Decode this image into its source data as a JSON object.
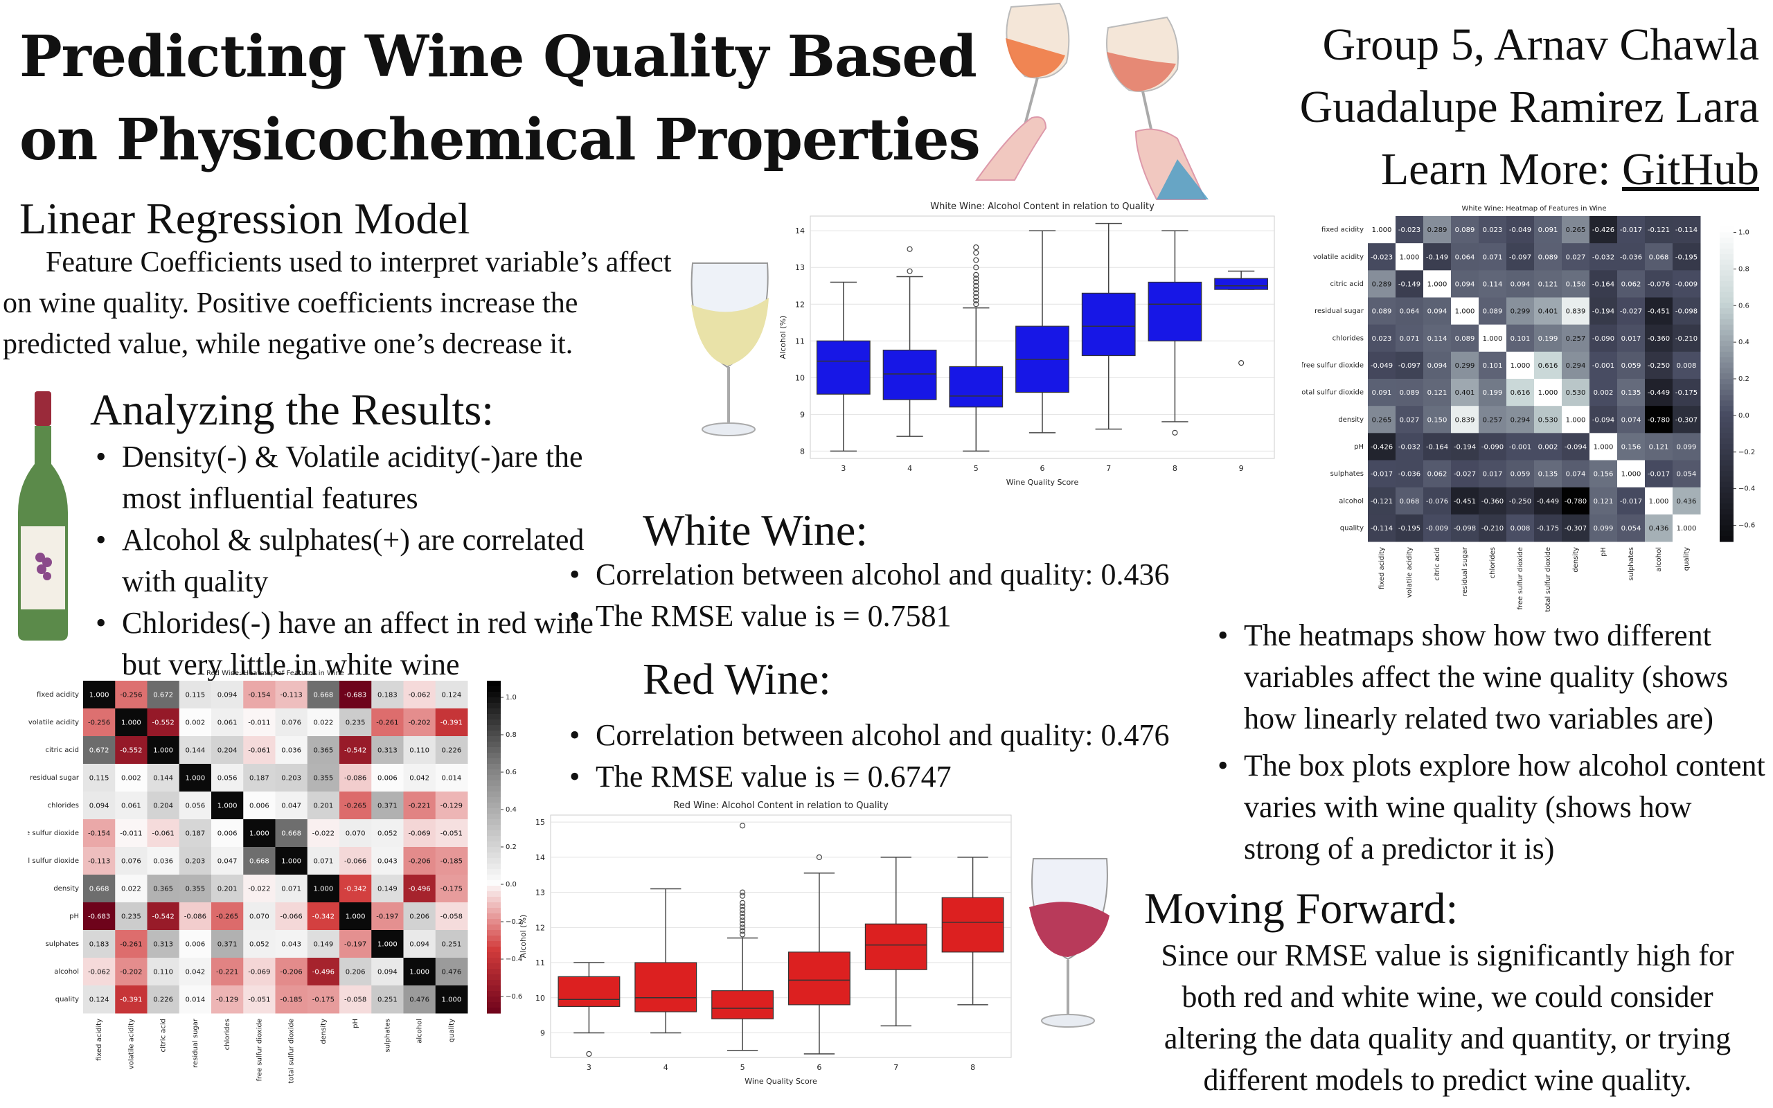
{
  "title": "Predicting Wine Quality Based on Physicochemical Properties",
  "authors": {
    "line1": "Group 5, Arnav Chawla",
    "line2": "Guadalupe Ramirez  Lara",
    "learn_more": "Learn More: ",
    "link": "GitHub"
  },
  "linear_regression": {
    "heading": "Linear Regression Model",
    "text": "Feature Coefficients used to interpret variable’s affect on wine quality.  Positive coefficients increase the predicted value, while negative one’s decrease it."
  },
  "analyzing": {
    "heading": "Analyzing the Results:",
    "bullets": [
      "Density(-) & Volatile acidity(-)are the most influential features",
      "Alcohol & sulphates(+) are correlated with quality",
      "Chlorides(-) have an affect in red wine but very little in white wine"
    ]
  },
  "white_wine": {
    "heading": "White Wine:",
    "bullets": [
      "Correlation between alcohol and quality: 0.436",
      "The RMSE value is = 0.7581"
    ]
  },
  "red_wine": {
    "heading": "Red Wine:",
    "bullets": [
      "Correlation between alcohol and quality: 0.476",
      "The RMSE value is = 0.6747"
    ]
  },
  "explain": {
    "bullets": [
      "The heatmaps show how two different variables affect the wine quality (shows how linearly related two variables are)",
      "The box plots explore how alcohol content varies with wine quality (shows how strong of a predictor it is)"
    ]
  },
  "moving_forward": {
    "heading": "Moving Forward:",
    "text": "Since our RMSE value is significantly high for both red and white wine, we could consider altering the data quality and quantity, or trying different models to predict wine quality."
  },
  "icons": [
    "toasting-wine-glasses-icon",
    "white-wine-glass-icon",
    "wine-bottle-icon",
    "red-wine-glass-icon"
  ],
  "chart_data": [
    {
      "id": "white_box",
      "type": "box",
      "title": "White Wine: Alcohol Content in relation to Quality",
      "xlabel": "Wine Quality Score",
      "ylabel": "Alcohol (%)",
      "ylim": [
        7.8,
        14.4
      ],
      "yticks": [
        8,
        9,
        10,
        11,
        12,
        13,
        14
      ],
      "color": "#1717e6",
      "grid": true,
      "categories": [
        "3",
        "4",
        "5",
        "6",
        "7",
        "8",
        "9"
      ],
      "boxes": [
        {
          "min": 8.0,
          "q1": 9.55,
          "median": 10.45,
          "q3": 11.0,
          "max": 12.6,
          "outliers": []
        },
        {
          "min": 8.4,
          "q1": 9.4,
          "median": 10.1,
          "q3": 10.75,
          "max": 12.75,
          "outliers": [
            12.9,
            13.5
          ]
        },
        {
          "min": 8.0,
          "q1": 9.2,
          "median": 9.5,
          "q3": 10.3,
          "max": 11.9,
          "outliers": [
            12.0,
            12.1,
            12.2,
            12.3,
            12.4,
            12.5,
            12.6,
            12.7,
            12.8,
            13.0,
            13.2,
            13.4,
            13.55
          ]
        },
        {
          "min": 8.5,
          "q1": 9.6,
          "median": 10.5,
          "q3": 11.4,
          "max": 14.0,
          "outliers": []
        },
        {
          "min": 8.6,
          "q1": 10.6,
          "median": 11.4,
          "q3": 12.3,
          "max": 14.2,
          "outliers": []
        },
        {
          "min": 8.8,
          "q1": 11.0,
          "median": 12.0,
          "q3": 12.6,
          "max": 14.0,
          "outliers": [
            8.5
          ]
        },
        {
          "min": 12.4,
          "q1": 12.4,
          "median": 12.5,
          "q3": 12.7,
          "max": 12.9,
          "outliers": [
            10.4
          ]
        }
      ]
    },
    {
      "id": "red_box",
      "type": "box",
      "title": "Red Wine: Alcohol Content in relation to Quality",
      "xlabel": "Wine Quality Score",
      "ylabel": "Alcohol (%)",
      "ylim": [
        8.3,
        15.2
      ],
      "yticks": [
        9,
        10,
        11,
        12,
        13,
        14,
        15
      ],
      "color": "#dc2020",
      "grid": true,
      "categories": [
        "3",
        "4",
        "5",
        "6",
        "7",
        "8"
      ],
      "boxes": [
        {
          "min": 9.0,
          "q1": 9.75,
          "median": 9.95,
          "q3": 10.6,
          "max": 11.0,
          "outliers": [
            8.4
          ]
        },
        {
          "min": 9.0,
          "q1": 9.6,
          "median": 10.0,
          "q3": 11.0,
          "max": 13.1,
          "outliers": []
        },
        {
          "min": 8.5,
          "q1": 9.4,
          "median": 9.7,
          "q3": 10.2,
          "max": 11.7,
          "outliers": [
            11.8,
            11.9,
            12.0,
            12.1,
            12.2,
            12.3,
            12.4,
            12.5,
            12.6,
            12.7,
            12.9,
            13.0,
            14.9
          ]
        },
        {
          "min": 8.4,
          "q1": 9.8,
          "median": 10.5,
          "q3": 11.3,
          "max": 13.55,
          "outliers": [
            14.0
          ]
        },
        {
          "min": 9.2,
          "q1": 10.8,
          "median": 11.5,
          "q3": 12.1,
          "max": 14.0,
          "outliers": []
        },
        {
          "min": 9.8,
          "q1": 11.3,
          "median": 12.15,
          "q3": 12.85,
          "max": 14.0,
          "outliers": []
        }
      ]
    },
    {
      "id": "white_heat",
      "type": "heatmap",
      "title": "White Wine: Heatmap of Features in Wine",
      "scale": "white-dark",
      "colorbar_ticks": [
        "1.0",
        "0.8",
        "0.6",
        "0.4",
        "0.2",
        "0.0",
        "−0.2",
        "−0.4",
        "−0.6"
      ],
      "labels": [
        "fixed acidity",
        "volatile acidity",
        "citric acid",
        "residual sugar",
        "chlorides",
        "free sulfur dioxide",
        "total sulfur dioxide",
        "density",
        "pH",
        "sulphates",
        "alcohol",
        "quality"
      ],
      "matrix": [
        [
          1.0,
          -0.023,
          0.289,
          0.089,
          0.023,
          -0.049,
          0.091,
          0.265,
          -0.426,
          -0.017,
          -0.121,
          -0.114
        ],
        [
          -0.023,
          1.0,
          -0.149,
          0.064,
          0.071,
          -0.097,
          0.089,
          0.027,
          -0.032,
          -0.036,
          0.068,
          -0.195
        ],
        [
          0.289,
          -0.149,
          1.0,
          0.094,
          0.114,
          0.094,
          0.121,
          0.15,
          -0.164,
          0.062,
          -0.076,
          -0.009
        ],
        [
          0.089,
          0.064,
          0.094,
          1.0,
          0.089,
          0.299,
          0.401,
          0.839,
          -0.194,
          -0.027,
          -0.451,
          -0.098
        ],
        [
          0.023,
          0.071,
          0.114,
          0.089,
          1.0,
          0.101,
          0.199,
          0.257,
          -0.09,
          0.017,
          -0.36,
          -0.21
        ],
        [
          -0.049,
          -0.097,
          0.094,
          0.299,
          0.101,
          1.0,
          0.616,
          0.294,
          -0.001,
          0.059,
          -0.25,
          0.008
        ],
        [
          0.091,
          0.089,
          0.121,
          0.401,
          0.199,
          0.616,
          1.0,
          0.53,
          0.002,
          0.135,
          -0.449,
          -0.175
        ],
        [
          0.265,
          0.027,
          0.15,
          0.839,
          0.257,
          0.294,
          0.53,
          1.0,
          -0.094,
          0.074,
          -0.78,
          -0.307
        ],
        [
          -0.426,
          -0.032,
          -0.164,
          -0.194,
          -0.09,
          -0.001,
          0.002,
          -0.094,
          1.0,
          0.156,
          0.121,
          0.099
        ],
        [
          -0.017,
          -0.036,
          0.062,
          -0.027,
          0.017,
          0.059,
          0.135,
          0.074,
          0.156,
          1.0,
          -0.017,
          0.054
        ],
        [
          -0.121,
          0.068,
          -0.076,
          -0.451,
          -0.36,
          -0.25,
          -0.449,
          -0.78,
          0.121,
          -0.017,
          1.0,
          0.436
        ],
        [
          -0.114,
          -0.195,
          -0.009,
          -0.098,
          -0.21,
          0.008,
          -0.175,
          -0.307,
          0.099,
          0.054,
          0.436,
          1.0
        ]
      ]
    },
    {
      "id": "red_heat",
      "type": "heatmap",
      "title": "Red Wine: Heatmap of Features in Wine",
      "scale": "red-gray",
      "colorbar_ticks": [
        "1.0",
        "0.8",
        "0.6",
        "0.4",
        "0.2",
        "0.0",
        "−0.2",
        "−0.4",
        "−0.6"
      ],
      "labels": [
        "fixed acidity",
        "volatile acidity",
        "citric acid",
        "residual sugar",
        "chlorides",
        "free sulfur dioxide",
        "total sulfur dioxide",
        "density",
        "pH",
        "sulphates",
        "alcohol",
        "quality"
      ],
      "matrix": [
        [
          1.0,
          -0.256,
          0.672,
          0.115,
          0.094,
          -0.154,
          -0.113,
          0.668,
          -0.683,
          0.183,
          -0.062,
          0.124
        ],
        [
          -0.256,
          1.0,
          -0.552,
          0.002,
          0.061,
          -0.011,
          0.076,
          0.022,
          0.235,
          -0.261,
          -0.202,
          -0.391
        ],
        [
          0.672,
          -0.552,
          1.0,
          0.144,
          0.204,
          -0.061,
          0.036,
          0.365,
          -0.542,
          0.313,
          0.11,
          0.226
        ],
        [
          0.115,
          0.002,
          0.144,
          1.0,
          0.056,
          0.187,
          0.203,
          0.355,
          -0.086,
          0.006,
          0.042,
          0.014
        ],
        [
          0.094,
          0.061,
          0.204,
          0.056,
          1.0,
          0.006,
          0.047,
          0.201,
          -0.265,
          0.371,
          -0.221,
          -0.129
        ],
        [
          -0.154,
          -0.011,
          -0.061,
          0.187,
          0.006,
          1.0,
          0.668,
          -0.022,
          0.07,
          0.052,
          -0.069,
          -0.051
        ],
        [
          -0.113,
          0.076,
          0.036,
          0.203,
          0.047,
          0.668,
          1.0,
          0.071,
          -0.066,
          0.043,
          -0.206,
          -0.185
        ],
        [
          0.668,
          0.022,
          0.365,
          0.355,
          0.201,
          -0.022,
          0.071,
          1.0,
          -0.342,
          0.149,
          -0.496,
          -0.175
        ],
        [
          -0.683,
          0.235,
          -0.542,
          -0.086,
          -0.265,
          0.07,
          -0.066,
          -0.342,
          1.0,
          -0.197,
          0.206,
          -0.058
        ],
        [
          0.183,
          -0.261,
          0.313,
          0.006,
          0.371,
          0.052,
          0.043,
          0.149,
          -0.197,
          1.0,
          0.094,
          0.251
        ],
        [
          -0.062,
          -0.202,
          0.11,
          0.042,
          -0.221,
          -0.069,
          -0.206,
          -0.496,
          0.206,
          0.094,
          1.0,
          0.476
        ],
        [
          0.124,
          -0.391,
          0.226,
          0.014,
          -0.129,
          -0.051,
          -0.185,
          -0.175,
          -0.058,
          0.251,
          0.476,
          1.0
        ]
      ]
    }
  ]
}
